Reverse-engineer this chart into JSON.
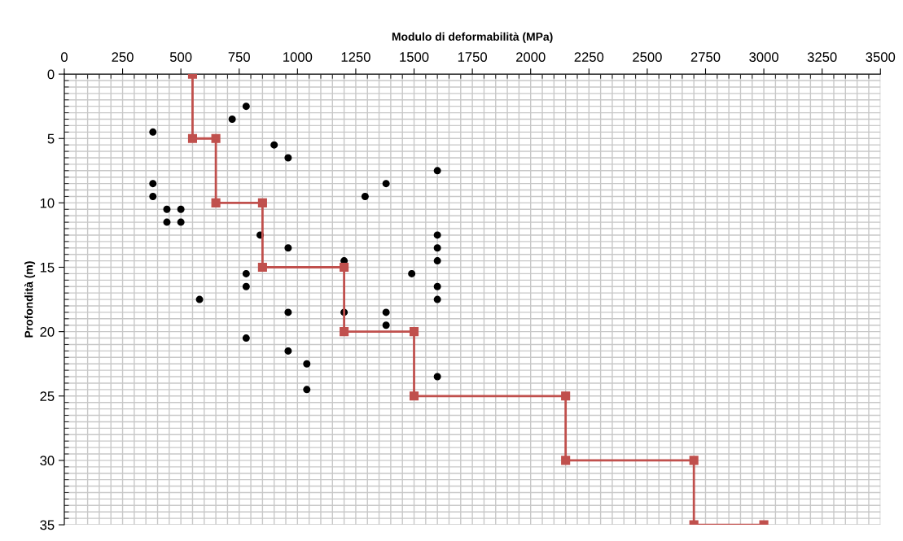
{
  "chart_data": {
    "type": "scatter",
    "xlabel": "Modulo di deformabilità (MPa)",
    "ylabel": "Profondità (m)",
    "xlim": [
      0,
      3500
    ],
    "xticks": [
      0,
      250,
      500,
      750,
      1000,
      1250,
      1500,
      1750,
      2000,
      2250,
      2500,
      2750,
      3000,
      3250,
      3500
    ],
    "ylim": [
      35,
      0
    ],
    "yticks": [
      0,
      5,
      10,
      15,
      20,
      25,
      30,
      35
    ],
    "grid": true,
    "legend": false,
    "series": [
      {
        "color": "#000000",
        "marker": "circle",
        "x": [
          780,
          720,
          380,
          900,
          960,
          1600,
          1380,
          380,
          380,
          1290,
          440,
          500,
          440,
          500,
          840,
          1600,
          960,
          1600,
          1200,
          1600,
          1490,
          780,
          780,
          1600,
          1600,
          580,
          960,
          1200,
          1380,
          1380,
          780,
          960,
          1040,
          1600,
          1040
        ],
        "values": [
          2.5,
          3.5,
          4.5,
          5.5,
          6.5,
          7.5,
          8.5,
          8.5,
          9.5,
          9.5,
          10.5,
          10.5,
          11.5,
          11.5,
          12.5,
          12.5,
          13.5,
          13.5,
          14.5,
          14.5,
          15.5,
          15.5,
          16.5,
          16.5,
          17.5,
          17.5,
          18.5,
          18.5,
          18.5,
          19.5,
          20.5,
          21.5,
          22.5,
          23.5,
          24.5
        ]
      },
      {
        "type": "line",
        "color": "#c0504d",
        "marker": "square",
        "line_style": "solid",
        "x": [
          550,
          550,
          650,
          650,
          850,
          850,
          1200,
          1200,
          1500,
          1500,
          2150,
          2150,
          2700,
          2700,
          3000
        ],
        "values": [
          0,
          5,
          5,
          10,
          10,
          15,
          15,
          20,
          20,
          25,
          25,
          30,
          30,
          35,
          35
        ]
      }
    ]
  }
}
